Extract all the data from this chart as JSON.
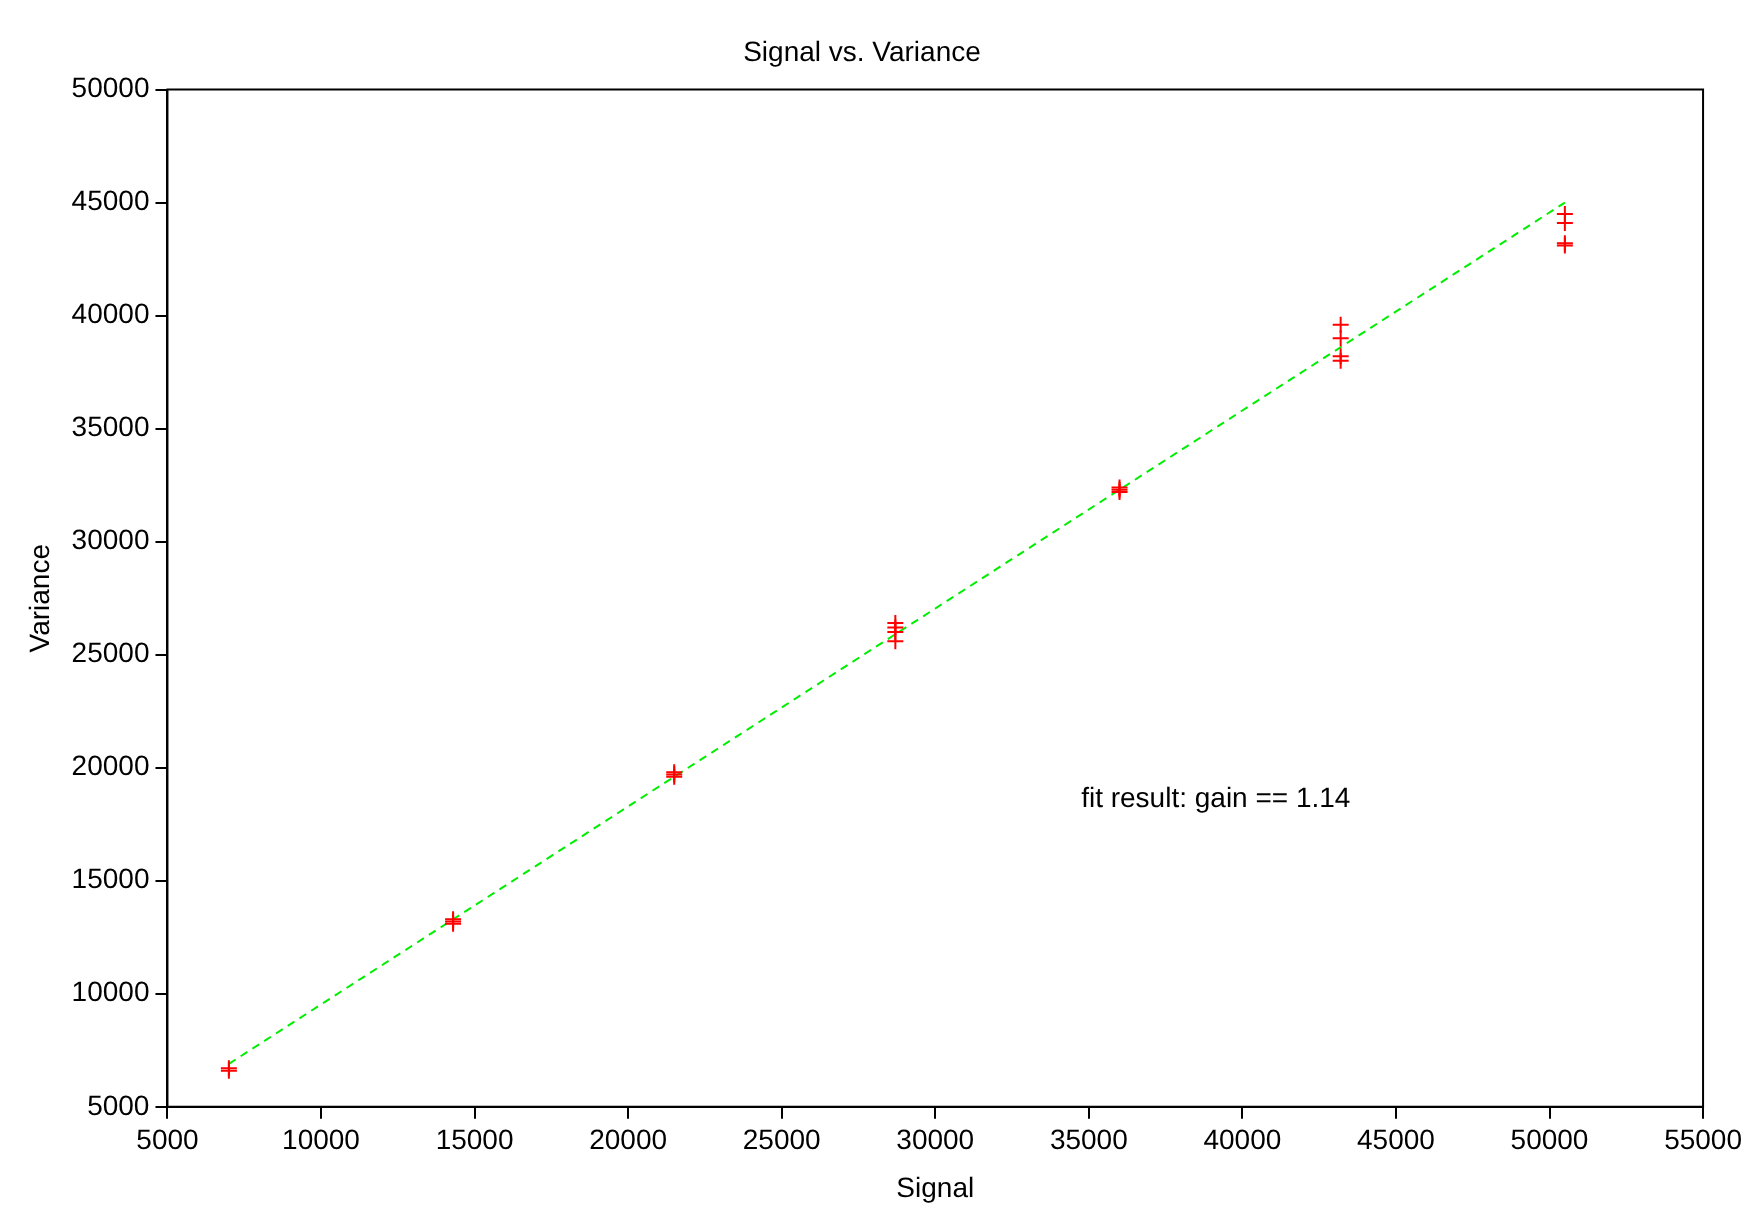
{
  "chart_data": {
    "type": "scatter",
    "title": "Signal vs. Variance",
    "xlabel": "Signal",
    "ylabel": "Variance",
    "annotations": [
      "fit result: gain == 1.14"
    ],
    "xlim": [
      5000,
      55000
    ],
    "xticks": [
      5000,
      10000,
      15000,
      20000,
      25000,
      30000,
      35000,
      40000,
      45000,
      50000,
      55000
    ],
    "ylim": [
      5000,
      50000
    ],
    "yticks": [
      5000,
      10000,
      15000,
      20000,
      25000,
      30000,
      35000,
      40000,
      45000,
      50000
    ],
    "marker": "cross",
    "legend": false,
    "series": [
      {
        "color": "#ff0000",
        "x": [
          7000,
          7000,
          14300,
          14300,
          14300,
          21500,
          21500,
          21500,
          28700,
          28700,
          28700,
          28700,
          36000,
          36000,
          36000,
          43200,
          43200,
          43200,
          43200,
          50500,
          50500,
          50500,
          50500
        ],
        "values": [
          6600,
          6700,
          13100,
          13200,
          13300,
          19600,
          19700,
          19800,
          25600,
          26000,
          26200,
          26400,
          32200,
          32300,
          32400,
          38000,
          38200,
          39000,
          39600,
          43100,
          43200,
          44100,
          44500
        ]
      },
      {
        "type": "line",
        "color": "#00ee00",
        "line_style": "dashed",
        "marker": "none",
        "x": [
          7000,
          50500
        ],
        "values": [
          6900,
          45000
        ]
      }
    ]
  }
}
